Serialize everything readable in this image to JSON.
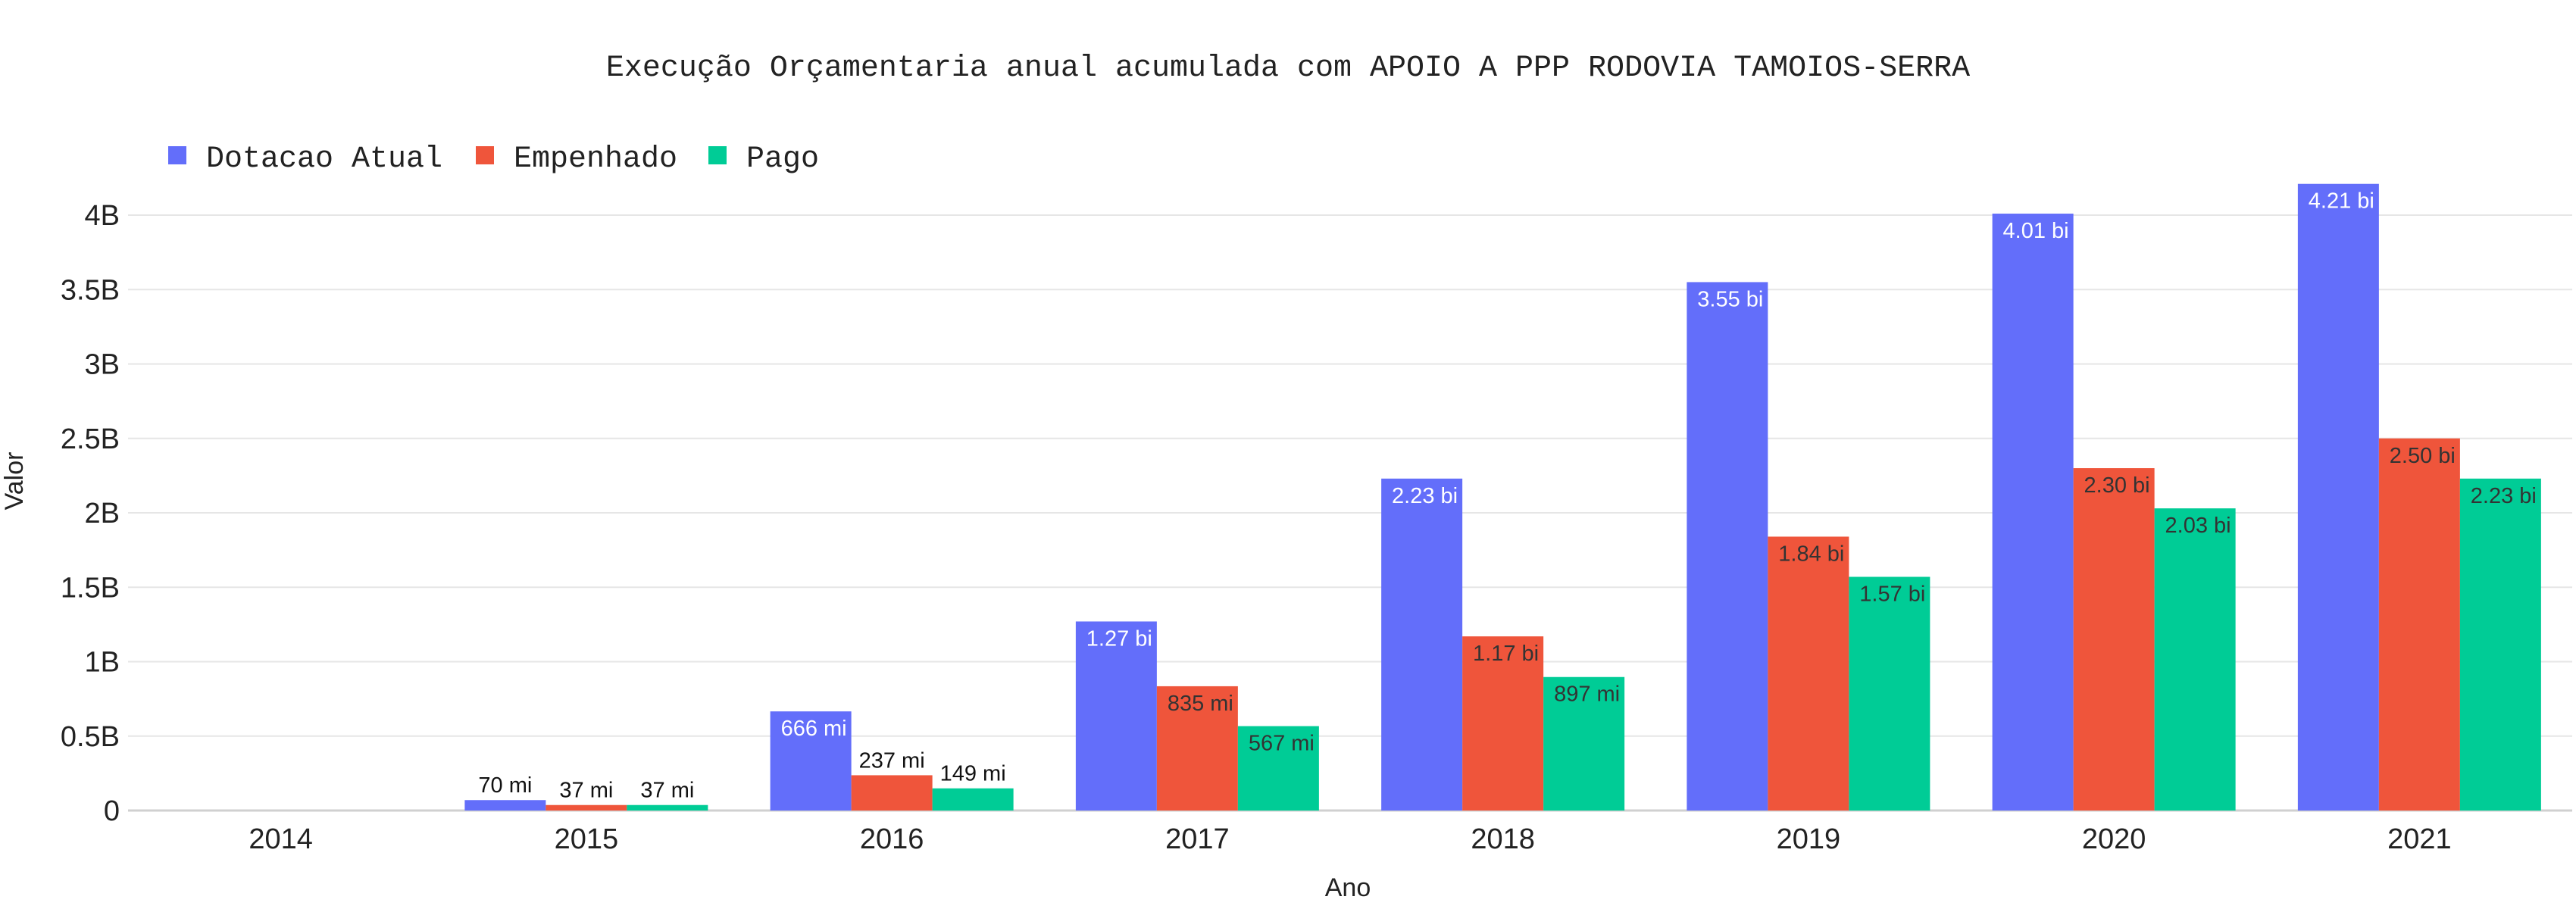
{
  "chart_data": {
    "type": "bar",
    "title": "Execução Orçamentaria anual acumulada com APOIO A PPP RODOVIA TAMOIOS-SERRA",
    "xlabel": "Ano",
    "ylabel": "Valor",
    "categories": [
      "2014",
      "2015",
      "2016",
      "2017",
      "2018",
      "2019",
      "2020",
      "2021"
    ],
    "ylim": [
      0,
      4.25
    ],
    "y_unit": "billions",
    "y_ticks": [
      0,
      0.5,
      1,
      1.5,
      2,
      2.5,
      3,
      3.5,
      4
    ],
    "y_tick_labels": [
      "0",
      "0.5B",
      "1B",
      "1.5B",
      "2B",
      "2.5B",
      "3B",
      "3.5B",
      "4B"
    ],
    "grid": true,
    "legend_position": "top-left",
    "series": [
      {
        "name": "Dotacao Atual",
        "color": "#636efa",
        "values": [
          0,
          0.07,
          0.666,
          1.27,
          2.23,
          3.55,
          4.01,
          4.21
        ],
        "labels": [
          "",
          "70 mi",
          "666 mi",
          "1.27 bi",
          "2.23 bi",
          "3.55 bi",
          "4.01 bi",
          "4.21 bi"
        ]
      },
      {
        "name": "Empenhado",
        "color": "#ef553b",
        "values": [
          0,
          0.037,
          0.237,
          0.835,
          1.17,
          1.84,
          2.3,
          2.5
        ],
        "labels": [
          "",
          "37 mi",
          "237 mi",
          "835 mi",
          "1.17 bi",
          "1.84 bi",
          "2.30 bi",
          "2.50 bi"
        ]
      },
      {
        "name": "Pago",
        "color": "#00cc96",
        "values": [
          0,
          0.037,
          0.149,
          0.567,
          0.897,
          1.57,
          2.03,
          2.23
        ],
        "labels": [
          "",
          "37 mi",
          "149 mi",
          "567 mi",
          "897 mi",
          "1.57 bi",
          "2.03 bi",
          "2.23 bi"
        ]
      }
    ]
  }
}
